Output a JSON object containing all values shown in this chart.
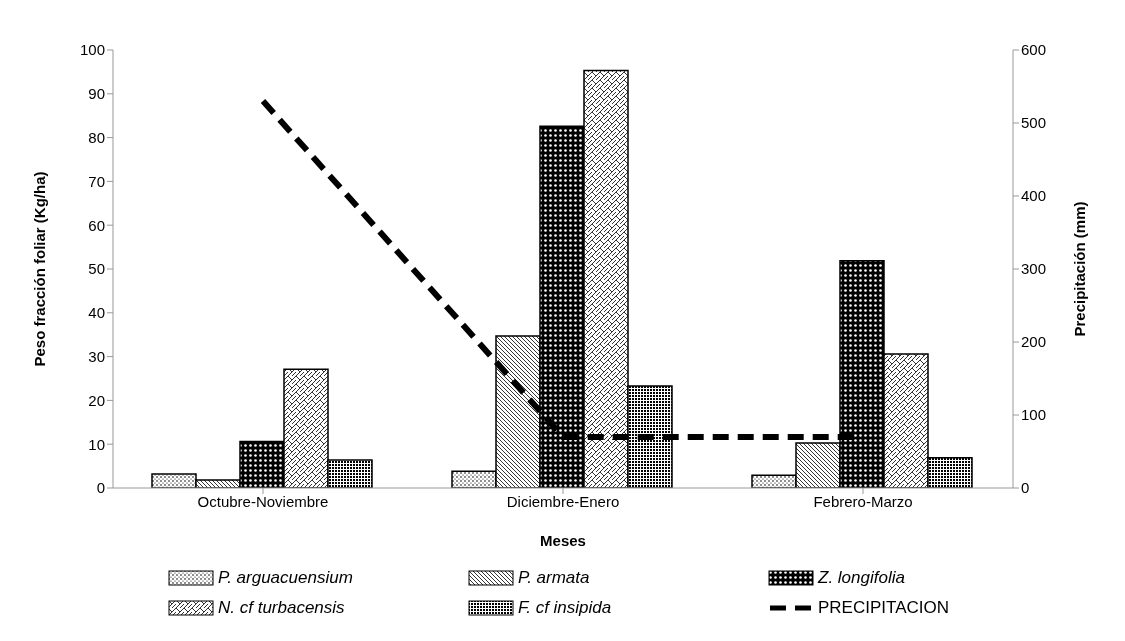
{
  "chart_data": {
    "type": "bar",
    "xlabel": "Meses",
    "ylabel": "Peso fracción foliar (Kg/ha)",
    "y2label": "Precipitación (mm)",
    "categories": [
      "Octubre-Noviembre",
      "Diciembre-Enero",
      "Febrero-Marzo"
    ],
    "series": [
      {
        "name": "P. arguacuensium",
        "color": "#000000",
        "values": [
          3.2,
          3.8,
          2.9
        ]
      },
      {
        "name": "P. armata",
        "color": "#000000",
        "values": [
          1.8,
          34.7,
          10.3
        ]
      },
      {
        "name": "Z. longifolia",
        "color": "#000000",
        "values": [
          10.6,
          82.6,
          51.9
        ]
      },
      {
        "name": "N. cf turbacensis",
        "color": "#000000",
        "values": [
          27.1,
          95.3,
          30.6
        ]
      },
      {
        "name": "F. cf insipida",
        "color": "#000000",
        "values": [
          6.4,
          23.3,
          6.9
        ]
      },
      {
        "name": "PRECIPITACION",
        "type": "line",
        "axis": "y2",
        "color": "#000000",
        "line_style": "dashed",
        "marker": "none",
        "values": [
          530,
          70,
          70
        ]
      }
    ],
    "ylim": [
      0,
      100
    ],
    "yticks": [
      0,
      10,
      20,
      30,
      40,
      50,
      60,
      70,
      80,
      90,
      100
    ],
    "y2lim": [
      0,
      600
    ],
    "y2ticks": [
      0,
      100,
      200,
      300,
      400,
      500,
      600
    ],
    "grid": false,
    "legend": "bottom"
  }
}
